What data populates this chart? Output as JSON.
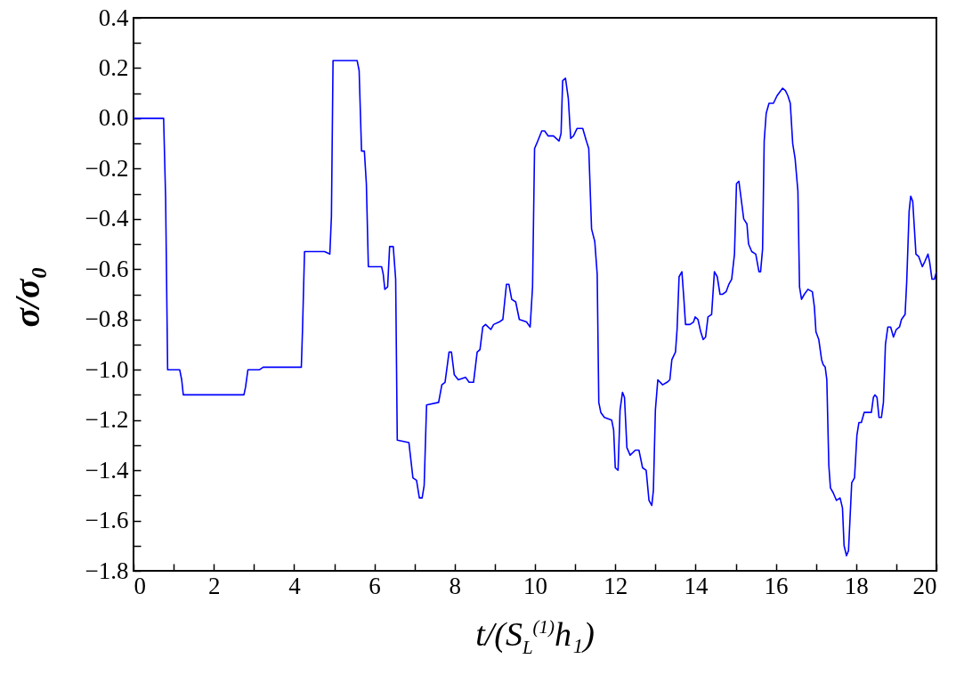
{
  "chart_data": {
    "type": "line",
    "xlabel": "t/(S$_{L}$$^{(1)}$h₁)",
    "ylabel": "σ/σ₀",
    "grid": false,
    "xlim": [
      0,
      20
    ],
    "ylim": [
      -1.8,
      0.4
    ],
    "xticks": [
      0,
      {
        "value": 1,
        "label": null
      },
      2,
      {
        "value": 3,
        "label": null
      },
      4,
      {
        "value": 5,
        "label": null
      },
      6,
      {
        "value": 7,
        "label": null
      },
      8,
      {
        "value": 9,
        "label": null
      },
      10,
      {
        "value": 11,
        "label": null
      },
      12,
      {
        "value": 13,
        "label": null
      },
      14,
      {
        "value": 15,
        "label": null
      },
      16,
      {
        "value": 17,
        "label": null
      },
      18,
      {
        "value": 19,
        "label": null
      },
      20
    ],
    "yticks": [
      {
        "value": -1.8,
        "label": "−1.8"
      },
      {
        "value": -1.7,
        "label": null
      },
      {
        "value": -1.6,
        "label": "−1.6"
      },
      {
        "value": -1.5,
        "label": null
      },
      {
        "value": -1.4,
        "label": "−1.4"
      },
      {
        "value": -1.3,
        "label": null
      },
      {
        "value": -1.2,
        "label": "−1.2"
      },
      {
        "value": -1.1,
        "label": null
      },
      {
        "value": -1.0,
        "label": "−1.0"
      },
      {
        "value": -0.9,
        "label": null
      },
      {
        "value": -0.8,
        "label": "−0.8"
      },
      {
        "value": -0.7,
        "label": null
      },
      {
        "value": -0.6,
        "label": "−0.6"
      },
      {
        "value": -0.5,
        "label": null
      },
      {
        "value": -0.4,
        "label": "−0.4"
      },
      {
        "value": -0.3,
        "label": null
      },
      {
        "value": -0.2,
        "label": "−0.2"
      },
      {
        "value": -0.1,
        "label": null
      },
      {
        "value": 0,
        "label": "0.0"
      },
      {
        "value": 0.1,
        "label": null
      },
      {
        "value": 0.2,
        "label": "0.2"
      },
      {
        "value": 0.3,
        "label": null
      },
      {
        "value": 0.4,
        "label": "0.4"
      }
    ],
    "x": [
      0,
      0.75,
      0.8,
      0.85,
      1.15,
      1.2,
      1.24,
      2.75,
      2.79,
      2.85,
      3.14,
      3.23,
      4.18,
      4.21,
      4.26,
      4.76,
      4.89,
      4.93,
      4.97,
      5.57,
      5.62,
      5.68,
      5.75,
      5.8,
      5.85,
      6.18,
      6.22,
      6.26,
      6.33,
      6.38,
      6.47,
      6.53,
      6.57,
      6.86,
      6.96,
      7.05,
      7.12,
      7.19,
      7.24,
      7.3,
      7.6,
      7.68,
      7.76,
      7.86,
      7.92,
      7.99,
      8.09,
      8.27,
      8.36,
      8.47,
      8.56,
      8.63,
      8.7,
      8.77,
      8.9,
      8.97,
      9.11,
      9.2,
      9.29,
      9.35,
      9.42,
      9.52,
      9.61,
      9.79,
      9.88,
      9.94,
      9.99,
      10.07,
      10.17,
      10.24,
      10.33,
      10.46,
      10.6,
      10.65,
      10.69,
      10.76,
      10.83,
      10.89,
      10.96,
      11.05,
      11.19,
      11.28,
      11.34,
      11.41,
      11.49,
      11.55,
      11.59,
      11.64,
      11.73,
      11.91,
      11.96,
      12.0,
      12.07,
      12.12,
      12.18,
      12.23,
      12.29,
      12.37,
      12.5,
      12.59,
      12.68,
      12.77,
      12.84,
      12.91,
      12.95,
      13.0,
      13.06,
      13.18,
      13.29,
      13.36,
      13.41,
      13.5,
      13.54,
      13.59,
      13.66,
      13.71,
      13.75,
      13.86,
      13.95,
      13.99,
      14.06,
      14.13,
      14.19,
      14.25,
      14.31,
      14.4,
      14.47,
      14.54,
      14.61,
      14.67,
      14.76,
      14.83,
      14.9,
      14.97,
      15.02,
      15.08,
      15.2,
      15.28,
      15.32,
      15.4,
      15.5,
      15.58,
      15.62,
      15.67,
      15.71,
      15.76,
      15.83,
      15.94,
      16.03,
      16.17,
      16.24,
      16.3,
      16.36,
      16.42,
      16.48,
      16.55,
      16.59,
      16.64,
      16.71,
      16.8,
      16.91,
      16.96,
      17.0,
      17.07,
      17.14,
      17.18,
      17.23,
      17.27,
      17.32,
      17.36,
      17.43,
      17.51,
      17.6,
      17.66,
      17.7,
      17.76,
      17.81,
      17.89,
      17.96,
      18.02,
      18.07,
      18.13,
      18.2,
      18.31,
      18.38,
      18.43,
      18.47,
      18.52,
      18.57,
      18.63,
      18.68,
      18.73,
      18.79,
      18.86,
      18.93,
      19.0,
      19.08,
      19.13,
      19.22,
      19.26,
      19.32,
      19.36,
      19.41,
      19.49,
      19.56,
      19.65,
      19.71,
      19.79,
      19.83,
      19.89,
      19.95,
      20.0
    ],
    "series": [
      {
        "color": "#0000ff",
        "values": [
          0,
          0,
          -0.32,
          -1.0,
          -1.0,
          -1.04,
          -1.1,
          -1.1,
          -1.07,
          -1.0,
          -1.0,
          -0.99,
          -0.99,
          -0.84,
          -0.53,
          -0.53,
          -0.54,
          -0.39,
          0.23,
          0.23,
          0.19,
          -0.13,
          -0.13,
          -0.26,
          -0.59,
          -0.59,
          -0.62,
          -0.68,
          -0.67,
          -0.51,
          -0.51,
          -0.64,
          -1.28,
          -1.29,
          -1.43,
          -1.44,
          -1.51,
          -1.51,
          -1.46,
          -1.14,
          -1.13,
          -1.06,
          -1.05,
          -0.93,
          -0.93,
          -1.02,
          -1.04,
          -1.03,
          -1.05,
          -1.05,
          -0.93,
          -0.92,
          -0.83,
          -0.82,
          -0.84,
          -0.82,
          -0.81,
          -0.8,
          -0.66,
          -0.66,
          -0.72,
          -0.73,
          -0.8,
          -0.81,
          -0.83,
          -0.67,
          -0.12,
          -0.09,
          -0.05,
          -0.05,
          -0.07,
          -0.07,
          -0.09,
          -0.06,
          0.15,
          0.16,
          0.08,
          -0.08,
          -0.07,
          -0.04,
          -0.04,
          -0.09,
          -0.12,
          -0.44,
          -0.49,
          -0.62,
          -1.13,
          -1.17,
          -1.19,
          -1.2,
          -1.24,
          -1.39,
          -1.4,
          -1.16,
          -1.09,
          -1.11,
          -1.31,
          -1.34,
          -1.32,
          -1.32,
          -1.39,
          -1.4,
          -1.52,
          -1.54,
          -1.48,
          -1.16,
          -1.04,
          -1.06,
          -1.05,
          -1.04,
          -0.96,
          -0.93,
          -0.84,
          -0.63,
          -0.61,
          -0.72,
          -0.82,
          -0.82,
          -0.81,
          -0.79,
          -0.8,
          -0.85,
          -0.88,
          -0.87,
          -0.79,
          -0.78,
          -0.61,
          -0.63,
          -0.7,
          -0.7,
          -0.69,
          -0.66,
          -0.64,
          -0.54,
          -0.26,
          -0.25,
          -0.4,
          -0.42,
          -0.5,
          -0.53,
          -0.54,
          -0.61,
          -0.61,
          -0.52,
          -0.09,
          0.02,
          0.06,
          0.06,
          0.09,
          0.12,
          0.11,
          0.09,
          0.06,
          -0.1,
          -0.16,
          -0.29,
          -0.67,
          -0.72,
          -0.7,
          -0.68,
          -0.69,
          -0.75,
          -0.85,
          -0.88,
          -0.96,
          -0.98,
          -0.99,
          -1.04,
          -1.38,
          -1.47,
          -1.49,
          -1.52,
          -1.51,
          -1.55,
          -1.7,
          -1.74,
          -1.72,
          -1.45,
          -1.43,
          -1.26,
          -1.21,
          -1.21,
          -1.17,
          -1.17,
          -1.17,
          -1.11,
          -1.1,
          -1.11,
          -1.19,
          -1.19,
          -1.13,
          -0.9,
          -0.83,
          -0.83,
          -0.87,
          -0.84,
          -0.83,
          -0.8,
          -0.78,
          -0.65,
          -0.37,
          -0.31,
          -0.33,
          -0.54,
          -0.55,
          -0.59,
          -0.57,
          -0.54,
          -0.57,
          -0.64,
          -0.64,
          -0.61
        ]
      }
    ]
  }
}
